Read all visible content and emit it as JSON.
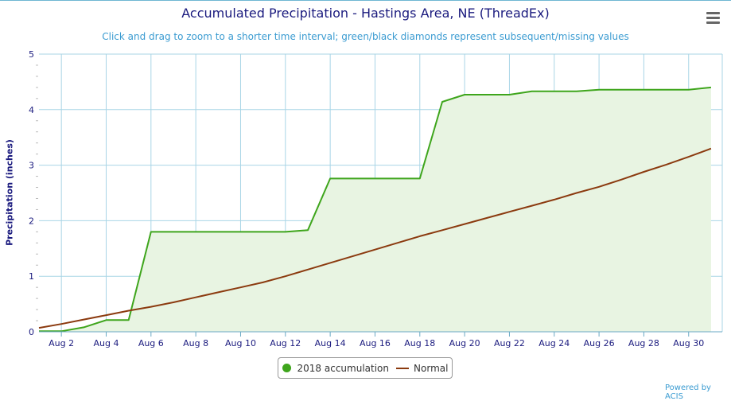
{
  "chart_data": {
    "type": "line",
    "title": "Accumulated Precipitation - Hastings Area, NE (ThreadEx)",
    "subtitle": "Click and drag to zoom to a shorter time interval; green/black diamonds represent subsequent/missing values",
    "xlabel": "",
    "ylabel": "Precipitation (inches)",
    "ylim": [
      0,
      5
    ],
    "xlim": [
      1,
      31.5
    ],
    "yticks": [
      "0",
      "1",
      "2",
      "3",
      "4",
      "5"
    ],
    "xticks": [
      {
        "x": 2,
        "label": "Aug 2"
      },
      {
        "x": 4,
        "label": "Aug 4"
      },
      {
        "x": 6,
        "label": "Aug 6"
      },
      {
        "x": 8,
        "label": "Aug 8"
      },
      {
        "x": 10,
        "label": "Aug 10"
      },
      {
        "x": 12,
        "label": "Aug 12"
      },
      {
        "x": 14,
        "label": "Aug 14"
      },
      {
        "x": 16,
        "label": "Aug 16"
      },
      {
        "x": 18,
        "label": "Aug 18"
      },
      {
        "x": 20,
        "label": "Aug 20"
      },
      {
        "x": 22,
        "label": "Aug 22"
      },
      {
        "x": 24,
        "label": "Aug 24"
      },
      {
        "x": 26,
        "label": "Aug 26"
      },
      {
        "x": 28,
        "label": "Aug 28"
      },
      {
        "x": 30,
        "label": "Aug 30"
      }
    ],
    "grid": true,
    "legend_position": "bottom-center",
    "series": [
      {
        "name": "2018 accumulation",
        "color": "#3ea51c",
        "fill": "#e8f4e2",
        "x": [
          1,
          2,
          3,
          4,
          5,
          6,
          7,
          8,
          9,
          10,
          11,
          12,
          13,
          14,
          15,
          16,
          17,
          18,
          19,
          20,
          21,
          22,
          23,
          24,
          25,
          26,
          27,
          28,
          29,
          30,
          31
        ],
        "values": [
          0.01,
          0.01,
          0.08,
          0.21,
          0.21,
          1.8,
          1.8,
          1.8,
          1.8,
          1.8,
          1.8,
          1.8,
          1.83,
          2.76,
          2.76,
          2.76,
          2.76,
          2.76,
          4.14,
          4.27,
          4.27,
          4.27,
          4.33,
          4.33,
          4.33,
          4.36,
          4.36,
          4.36,
          4.36,
          4.36,
          4.4
        ]
      },
      {
        "name": "Normal",
        "color": "#8b3a0f",
        "x": [
          1,
          2,
          3,
          4,
          5,
          6,
          7,
          8,
          9,
          10,
          11,
          12,
          13,
          14,
          15,
          16,
          17,
          18,
          19,
          20,
          21,
          22,
          23,
          24,
          25,
          26,
          27,
          28,
          29,
          30,
          31
        ],
        "values": [
          0.07,
          0.14,
          0.22,
          0.3,
          0.38,
          0.45,
          0.53,
          0.62,
          0.71,
          0.8,
          0.89,
          1.0,
          1.12,
          1.24,
          1.36,
          1.48,
          1.6,
          1.72,
          1.83,
          1.94,
          2.05,
          2.16,
          2.27,
          2.38,
          2.5,
          2.61,
          2.74,
          2.88,
          3.01,
          3.15,
          3.3
        ]
      }
    ]
  },
  "ui": {
    "credit": "Powered by ACIS",
    "menu_icon": "hamburger-menu-icon"
  }
}
